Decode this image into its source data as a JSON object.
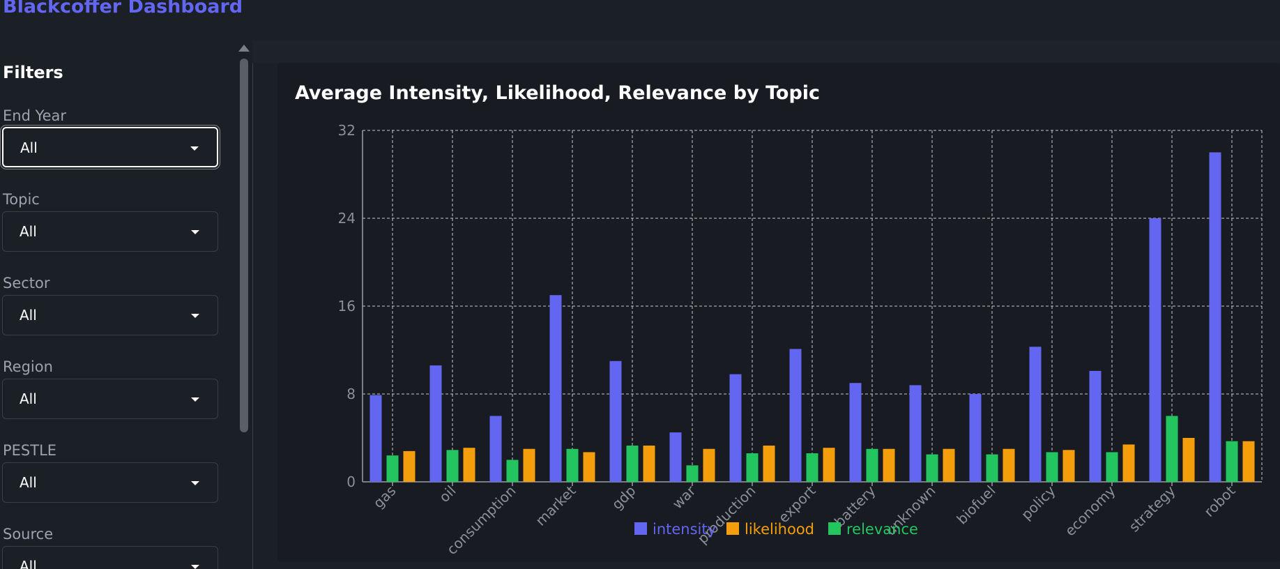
{
  "app": {
    "title": "Blackcoffer Dashboard"
  },
  "sidebar": {
    "title": "Filters",
    "filters": [
      {
        "label": "End Year",
        "value": "All"
      },
      {
        "label": "Topic",
        "value": "All"
      },
      {
        "label": "Sector",
        "value": "All"
      },
      {
        "label": "Region",
        "value": "All"
      },
      {
        "label": "PESTLE",
        "value": "All"
      },
      {
        "label": "Source",
        "value": "All"
      }
    ]
  },
  "colors": {
    "intensity": "#6366f1",
    "likelihood": "#f59e0b",
    "relevance": "#22c55e",
    "brand": "#6366f1"
  },
  "chart_data": {
    "type": "bar",
    "title": "Average Intensity, Likelihood, Relevance by Topic",
    "categories": [
      "gas",
      "oil",
      "consumption",
      "market",
      "gdp",
      "war",
      "production",
      "export",
      "battery",
      "unknown",
      "biofuel",
      "policy",
      "economy",
      "strategy",
      "robot"
    ],
    "series": [
      {
        "name": "intensity",
        "values": [
          7.9,
          10.6,
          6.0,
          17.0,
          11.0,
          4.5,
          9.8,
          12.1,
          9.0,
          8.8,
          8.0,
          12.3,
          10.1,
          24.0,
          30.0
        ]
      },
      {
        "name": "relevance",
        "values": [
          2.4,
          2.9,
          2.0,
          3.0,
          3.3,
          1.5,
          2.6,
          2.6,
          3.0,
          2.5,
          2.5,
          2.7,
          2.7,
          6.0,
          3.7
        ]
      },
      {
        "name": "likelihood",
        "values": [
          2.8,
          3.1,
          3.0,
          2.7,
          3.3,
          3.0,
          3.3,
          3.1,
          3.0,
          3.0,
          3.0,
          2.9,
          3.4,
          4.0,
          3.7
        ]
      }
    ],
    "legend": [
      "intensity",
      "likelihood",
      "relevance"
    ],
    "yticks": [
      "0",
      "8",
      "16",
      "24",
      "32"
    ],
    "ylim": [
      0,
      32
    ],
    "grid": true,
    "legend_placement": "bottom"
  }
}
